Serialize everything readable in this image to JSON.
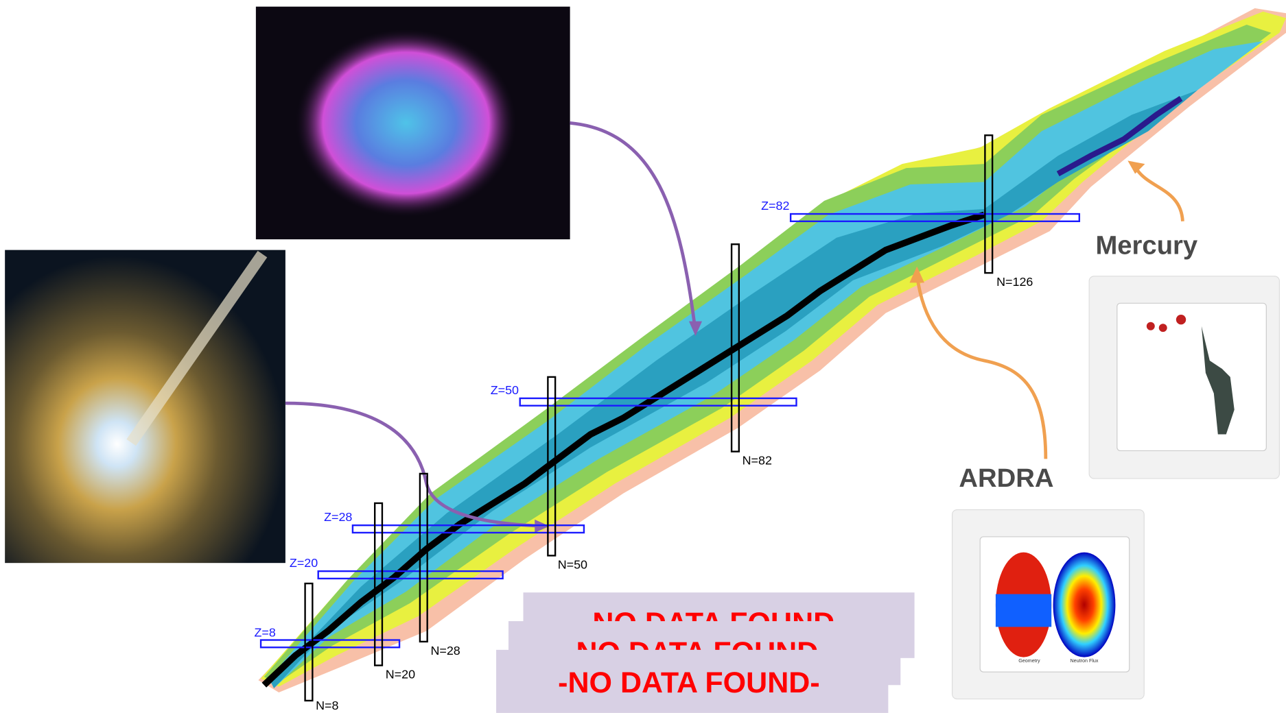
{
  "chart_labels": {
    "magic_protons": [
      "Z=8",
      "Z=20",
      "Z=28",
      "Z=50",
      "Z=82"
    ],
    "magic_neutrons": [
      "N=8",
      "N=20",
      "N=28",
      "N=50",
      "N=82",
      "N=126"
    ]
  },
  "facilities": [
    {
      "name": "Mercury"
    },
    {
      "name": "ARDRA",
      "figure_captions": [
        "Geometry",
        "Neutron Flux"
      ]
    }
  ],
  "placeholders": [
    "-NO DATA FOUND-",
    "-NO DATA FOUND-",
    "-NO DATA FOUND-"
  ]
}
